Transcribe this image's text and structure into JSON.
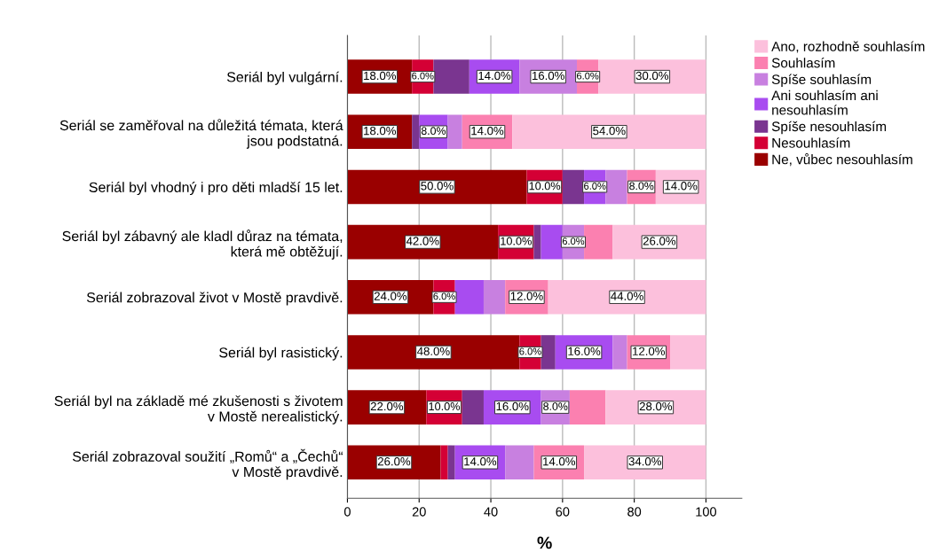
{
  "chart_data": {
    "type": "bar",
    "orientation": "horizontal",
    "stacked": true,
    "xlabel": "%",
    "xlim": [
      0,
      110
    ],
    "xticks": [
      0,
      20,
      40,
      60,
      80,
      100
    ],
    "grid": "x",
    "legend": "top right",
    "categories": [
      "Seriál byl vulgární.",
      "Seriál se zaměřoval na důležitá témata, která\njsou podstatná.",
      "Seriál byl vhodný i pro děti mladší 15 let.",
      "Seriál byl zábavný ale kladl důraz na témata,\nkterá mě obtěžují.",
      "Seriál zobrazoval život v Mostě pravdivě.",
      "Seriál byl rasistický.",
      "Seriál byl na základě mé zkušenosti s životem\nv Mostě nerealistický.",
      "Seriál zobrazoval soužití „Romů“ a „Čechů“\nv Mostě pravdivě."
    ],
    "series": [
      {
        "name": "Ne, vůbec nesouhlasím",
        "color": "#9a0000",
        "values": [
          18,
          18,
          50,
          42,
          24,
          48,
          22,
          26
        ],
        "value_labels": [
          "18.0%",
          "18.0%",
          "50.0%",
          "42.0%",
          "24.0%",
          "48.0%",
          "22.0%",
          "26.0%"
        ]
      },
      {
        "name": "Nesouhlasím",
        "color": "#d40035",
        "values": [
          6,
          0,
          10,
          10,
          6,
          6,
          10,
          2
        ],
        "value_labels": [
          "6.0%",
          null,
          "10.0%",
          "10.0%",
          "6.0%",
          "6.0%",
          "10.0%",
          null
        ]
      },
      {
        "name": "Spíše nesouhlasím",
        "color": "#7a3590",
        "values": [
          10,
          2,
          6,
          2,
          0,
          4,
          6,
          2
        ],
        "value_labels": [
          null,
          null,
          null,
          null,
          null,
          null,
          null,
          null
        ]
      },
      {
        "name": "Ani souhlasím ani\nnesouhlasím",
        "color": "#a84cf0",
        "values": [
          14,
          8,
          6,
          6,
          8,
          16,
          16,
          14
        ],
        "value_labels": [
          "14.0%",
          "8.0%",
          "6.0%",
          null,
          null,
          "16.0%",
          "16.0%",
          "14.0%"
        ]
      },
      {
        "name": "Spíše souhlasím",
        "color": "#c880e0",
        "values": [
          16,
          4,
          6,
          6,
          6,
          4,
          8,
          8
        ],
        "value_labels": [
          "16.0%",
          null,
          null,
          "6.0%",
          null,
          null,
          "8.0%",
          null
        ]
      },
      {
        "name": "Souhlasím",
        "color": "#fb80b0",
        "values": [
          6,
          14,
          8,
          8,
          12,
          12,
          10,
          14
        ],
        "value_labels": [
          "6.0%",
          "14.0%",
          "8.0%",
          null,
          "12.0%",
          "12.0%",
          null,
          "14.0%"
        ]
      },
      {
        "name": "Ano, rozhodně souhlasím",
        "color": "#fcc0dc",
        "values": [
          30,
          54,
          14,
          26,
          44,
          10,
          28,
          34
        ],
        "value_labels": [
          "30.0%",
          "54.0%",
          "14.0%",
          "26.0%",
          "44.0%",
          null,
          "28.0%",
          "34.0%"
        ]
      }
    ]
  }
}
